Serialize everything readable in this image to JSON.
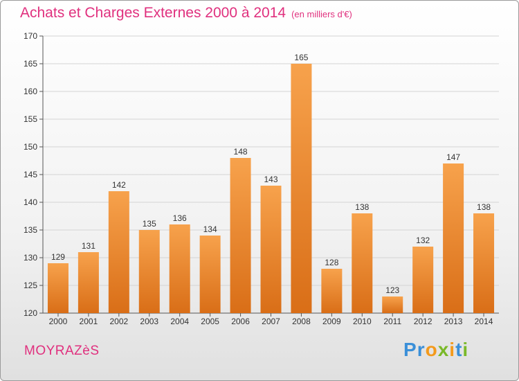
{
  "header": {
    "title": "Achats et Charges Externes 2000 à 2014",
    "subtitle": "(en milliers d'€)"
  },
  "footer": {
    "commune": "MOYRAZèS",
    "logo_letters": [
      {
        "char": "P",
        "color": "#3a8fd8"
      },
      {
        "char": "r",
        "color": "#3a8fd8"
      },
      {
        "char": "o",
        "color": "#f39a1c"
      },
      {
        "char": "x",
        "color": "#7ab929"
      },
      {
        "char": "i",
        "color": "#f39a1c"
      },
      {
        "char": "t",
        "color": "#3a8fd8"
      },
      {
        "char": "i",
        "color": "#7ab929"
      }
    ]
  },
  "chart_data": {
    "type": "bar",
    "categories": [
      "2000",
      "2001",
      "2002",
      "2003",
      "2004",
      "2005",
      "2006",
      "2007",
      "2008",
      "2009",
      "2010",
      "2011",
      "2012",
      "2013",
      "2014"
    ],
    "values": [
      129,
      131,
      142,
      135,
      136,
      134,
      148,
      143,
      165,
      128,
      138,
      123,
      132,
      147,
      138
    ],
    "title": "Achats et Charges Externes 2000 à 2014",
    "subtitle": "(en milliers d'€)",
    "ylim": [
      120,
      170
    ],
    "yticks": [
      120,
      125,
      130,
      135,
      140,
      145,
      150,
      155,
      160,
      165,
      170
    ],
    "grid": true,
    "bar_color": "#f0933a",
    "grid_color": "#d4d4d4"
  }
}
